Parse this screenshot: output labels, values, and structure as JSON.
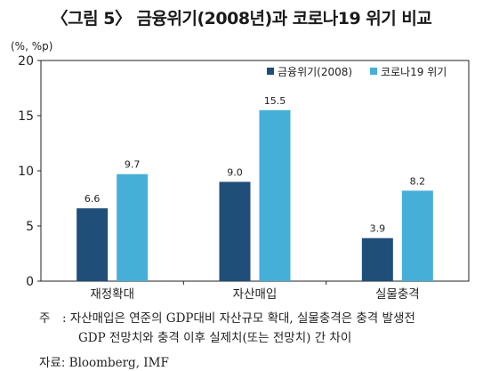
{
  "title": "〈그림 5〉 금융위기(2008년)과 코로나19 위기 비교",
  "note_mark": "주",
  "note_line1": ": 자산매입은 연준의 GDP대비 자산규모 확대, 실물충격은 충격 발생전",
  "note_line2": "GDP 전망치와 충격 이후 실제치(또는 전망치) 간 차이",
  "source_label": "자료:",
  "source_text": " Bloomberg, IMF",
  "colors": {
    "series1": "#1f4e79",
    "series2": "#46afd7",
    "axis": "#222222"
  },
  "chart_data": {
    "type": "bar",
    "ylabel": "(%, %p)",
    "ylim": [
      0,
      20
    ],
    "yticks": [
      0,
      5,
      10,
      15,
      20
    ],
    "categories": [
      "재정확대",
      "자산매입",
      "실물충격"
    ],
    "legend_position": "top-right",
    "grid": false,
    "series": [
      {
        "name": "금융위기(2008)",
        "values": [
          6.6,
          9.0,
          3.9
        ],
        "labels": [
          "6.6",
          "9.0",
          "3.9"
        ]
      },
      {
        "name": "코로나19 위기",
        "values": [
          9.7,
          15.5,
          8.2
        ],
        "labels": [
          "9.7",
          "15.5",
          "8.2"
        ]
      }
    ]
  }
}
